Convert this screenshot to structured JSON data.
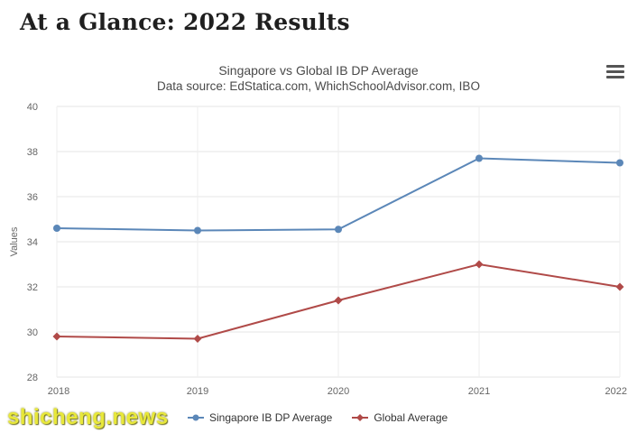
{
  "page": {
    "heading": "At a Glance: 2022 Results"
  },
  "watermark": "shicheng.news",
  "chart_data": {
    "type": "line",
    "title": "Singapore vs Global IB DP Average",
    "subtitle": "Data source: EdStatica.com, WhichSchoolAdvisor.com, IBO",
    "xlabel": "",
    "ylabel": "Values",
    "categories": [
      "2018",
      "2019",
      "2020",
      "2021",
      "2022"
    ],
    "ylim": [
      28,
      40
    ],
    "yticks": [
      28,
      30,
      32,
      34,
      36,
      38,
      40
    ],
    "grid": true,
    "legend_position": "bottom",
    "series": [
      {
        "name": "Singapore IB DP Average",
        "values": [
          34.6,
          34.5,
          34.55,
          37.7,
          37.5
        ],
        "color": "#5b87b8",
        "marker": "circle"
      },
      {
        "name": "Global Average",
        "values": [
          29.8,
          29.7,
          31.4,
          33.0,
          32.0
        ],
        "color": "#b04a48",
        "marker": "diamond"
      }
    ]
  }
}
